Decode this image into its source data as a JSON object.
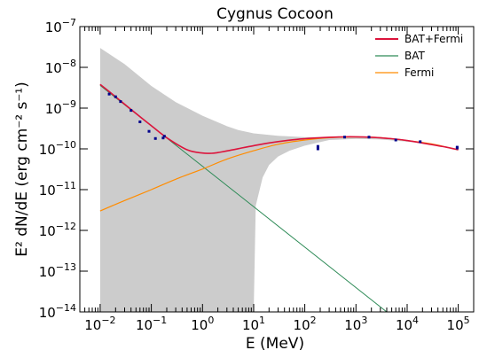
{
  "chart_data": {
    "type": "line",
    "title": "Cygnus Cocoon",
    "xlabel": "E (MeV)",
    "ylabel": "E² dN/dE (erg cm⁻² s⁻¹)",
    "xscale": "log",
    "yscale": "log",
    "xlim": [
      0.004,
      200000
    ],
    "ylim": [
      1e-14,
      1e-07
    ],
    "x_ticks": [
      {
        "value": 0.01,
        "base": "10",
        "exp": "−2"
      },
      {
        "value": 0.1,
        "base": "10",
        "exp": "−1"
      },
      {
        "value": 1,
        "base": "10",
        "exp": "0"
      },
      {
        "value": 10,
        "base": "10",
        "exp": "1"
      },
      {
        "value": 100,
        "base": "10",
        "exp": "2"
      },
      {
        "value": 1000,
        "base": "10",
        "exp": "3"
      },
      {
        "value": 10000,
        "base": "10",
        "exp": "4"
      },
      {
        "value": 100000,
        "base": "10",
        "exp": "5"
      }
    ],
    "y_ticks": [
      {
        "value": 1e-14,
        "base": "10",
        "exp": "−14"
      },
      {
        "value": 1e-13,
        "base": "10",
        "exp": "−13"
      },
      {
        "value": 1e-12,
        "base": "10",
        "exp": "−12"
      },
      {
        "value": 1e-11,
        "base": "10",
        "exp": "−11"
      },
      {
        "value": 1e-10,
        "base": "10",
        "exp": "−10"
      },
      {
        "value": 1e-09,
        "base": "10",
        "exp": "−9"
      },
      {
        "value": 1e-08,
        "base": "10",
        "exp": "−8"
      },
      {
        "value": 1e-07,
        "base": "10",
        "exp": "−7"
      }
    ],
    "legend_position": "top-right",
    "band": {
      "color": "#cccccc",
      "upper": [
        [
          0.01,
          3e-08
        ],
        [
          0.03,
          1.2e-08
        ],
        [
          0.1,
          3.5e-09
        ],
        [
          0.3,
          1.4e-09
        ],
        [
          1,
          6.5e-10
        ],
        [
          2,
          4.5e-10
        ],
        [
          3,
          3.6e-10
        ],
        [
          5,
          2.9e-10
        ],
        [
          10,
          2.4e-10
        ],
        [
          30,
          2.1e-10
        ],
        [
          100,
          1.95e-10
        ],
        [
          300,
          1.95e-10
        ],
        [
          1000,
          1.95e-10
        ],
        [
          3000,
          1.85e-10
        ],
        [
          10000,
          1.6e-10
        ],
        [
          30000,
          1.35e-10
        ],
        [
          100000,
          9.5e-11
        ]
      ],
      "lower": [
        [
          100000,
          9e-11
        ],
        [
          30000,
          1.3e-10
        ],
        [
          10000,
          1.5e-10
        ],
        [
          3000,
          1.7e-10
        ],
        [
          1000,
          1.75e-10
        ],
        [
          300,
          1.65e-10
        ],
        [
          100,
          1.2e-10
        ],
        [
          50,
          9e-11
        ],
        [
          30,
          6.5e-11
        ],
        [
          20,
          4e-11
        ],
        [
          15,
          2e-11
        ],
        [
          11,
          4e-12
        ],
        [
          10,
          1e-14
        ],
        [
          0.01,
          1e-14
        ]
      ]
    },
    "series": [
      {
        "name": "BAT+Fermi",
        "color": "#dc143c",
        "x": [
          0.01,
          0.02,
          0.05,
          0.1,
          0.2,
          0.5,
          1,
          1.5,
          2,
          3,
          5,
          10,
          20,
          50,
          100,
          200,
          500,
          1000,
          2000,
          5000,
          10000,
          20000,
          50000,
          100000
        ],
        "y": [
          3.8e-09,
          1.9e-09,
          7.4e-10,
          3.7e-10,
          1.88e-10,
          9.5e-11,
          7.9e-11,
          7.8e-11,
          8.1e-11,
          8.9e-11,
          1.01e-10,
          1.2e-10,
          1.4e-10,
          1.63e-10,
          1.78e-10,
          1.88e-10,
          1.97e-10,
          1.98e-10,
          1.93e-10,
          1.78e-10,
          1.6e-10,
          1.39e-10,
          1.14e-10,
          9.5e-11
        ]
      },
      {
        "name": "BAT",
        "color": "#2e8b57",
        "x": [
          0.01,
          4000
        ],
        "y": [
          3.6e-09,
          1e-14
        ]
      },
      {
        "name": "Fermi",
        "color": "#ff8c00",
        "x": [
          0.01,
          0.03,
          0.1,
          0.3,
          1,
          3,
          10,
          30,
          100,
          300,
          1000,
          3000,
          10000,
          30000,
          100000
        ],
        "y": [
          3e-12,
          5.4e-12,
          1e-11,
          1.8e-11,
          3.2e-11,
          5.6e-11,
          9e-11,
          1.3e-10,
          1.65e-10,
          1.88e-10,
          1.97e-10,
          1.88e-10,
          1.6e-10,
          1.33e-10,
          9.5e-11
        ]
      }
    ],
    "points": {
      "color": "#00008b",
      "data": [
        [
          0.015,
          2.2e-09
        ],
        [
          0.02,
          1.9e-09
        ],
        [
          0.025,
          1.45e-09
        ],
        [
          0.04,
          8.8e-10
        ],
        [
          0.06,
          4.6e-10
        ],
        [
          0.09,
          2.7e-10
        ],
        [
          0.12,
          1.8e-10
        ],
        [
          0.17,
          1.85e-10
        ],
        [
          0.18,
          2.05e-10
        ],
        [
          180,
          1e-10
        ],
        [
          180,
          1.15e-10
        ],
        [
          600,
          1.95e-10
        ],
        [
          1800,
          1.95e-10
        ],
        [
          6000,
          1.65e-10
        ],
        [
          18000,
          1.5e-10
        ],
        [
          95000,
          1.05e-10
        ],
        [
          95000,
          1.1e-10
        ]
      ]
    }
  }
}
